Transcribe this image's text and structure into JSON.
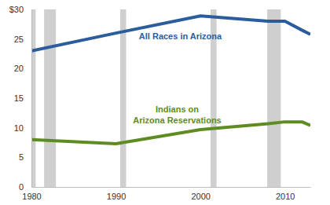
{
  "chart_data": {
    "type": "line",
    "x": [
      1980,
      1990,
      2000,
      2008,
      2010,
      2012,
      2013
    ],
    "series": [
      {
        "name": "All Races in Arizona",
        "color": "#2b5d9e",
        "values": [
          23,
          26,
          28.9,
          28,
          28,
          26.5,
          25.8
        ]
      },
      {
        "name": "Indians on Arizona Reservations",
        "color": "#5f8c22",
        "values": [
          8,
          7.3,
          9.7,
          10.7,
          11,
          11,
          10.4
        ]
      }
    ],
    "bands": [
      [
        1980,
        1980.5
      ],
      [
        1981.5,
        1982.9
      ],
      [
        1990.5,
        1991.2
      ],
      [
        2001.2,
        2001.9
      ],
      [
        2007.9,
        2009.5
      ]
    ],
    "xlim": [
      1980,
      2013
    ],
    "xticks": [
      1980,
      1990,
      2000,
      2010
    ],
    "ylim": [
      0,
      30
    ],
    "yticks": [
      0,
      5,
      10,
      15,
      20,
      25,
      {
        "value": 30,
        "label": "$30"
      }
    ],
    "grid": false
  }
}
